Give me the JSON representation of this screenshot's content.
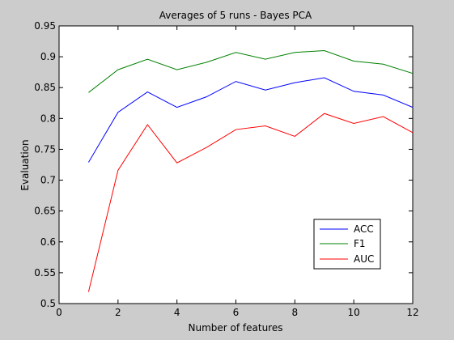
{
  "chart_data": {
    "type": "line",
    "title": "Averages of 5 runs - Bayes PCA",
    "xlabel": "Number of features",
    "ylabel": "Evaluation",
    "xlim": [
      0,
      12
    ],
    "ylim": [
      0.5,
      0.95
    ],
    "x_ticks": [
      0,
      2,
      4,
      6,
      8,
      10,
      12
    ],
    "y_ticks": [
      0.5,
      0.55,
      0.6,
      0.65,
      0.7,
      0.75,
      0.8,
      0.85,
      0.9,
      0.95
    ],
    "grid": false,
    "legend_position": "lower-right",
    "x": [
      1,
      2,
      3,
      4,
      5,
      6,
      7,
      8,
      9,
      10,
      11,
      12
    ],
    "series": [
      {
        "name": "ACC",
        "color": "#0000ff",
        "values": [
          0.729,
          0.81,
          0.843,
          0.818,
          0.835,
          0.86,
          0.846,
          0.858,
          0.866,
          0.844,
          0.838,
          0.818
        ]
      },
      {
        "name": "F1",
        "color": "#008000",
        "values": [
          0.842,
          0.879,
          0.896,
          0.879,
          0.891,
          0.907,
          0.896,
          0.907,
          0.91,
          0.893,
          0.888,
          0.873
        ]
      },
      {
        "name": "AUC",
        "color": "#ff0000",
        "values": [
          0.519,
          0.716,
          0.79,
          0.728,
          0.753,
          0.782,
          0.788,
          0.771,
          0.808,
          0.792,
          0.803,
          0.777
        ]
      }
    ]
  }
}
